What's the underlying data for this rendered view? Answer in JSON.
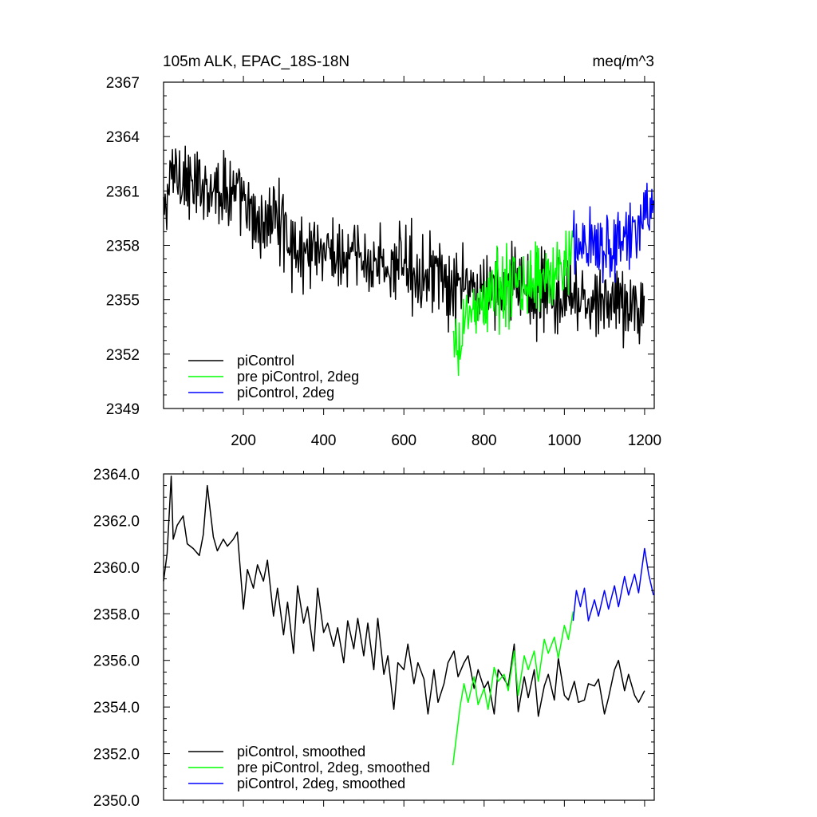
{
  "chart_data": [
    {
      "type": "line",
      "title": "105m ALK, EPAC_18S-18N",
      "units": "meq/m^3",
      "xlim": [
        1,
        1224
      ],
      "ylim": [
        2349,
        2367
      ],
      "xticks": [
        200,
        400,
        600,
        800,
        1000,
        1200
      ],
      "xtick_labels": [
        "200",
        "400",
        "600",
        "800",
        "1000",
        "1200"
      ],
      "yticks": [
        2349,
        2352,
        2355,
        2358,
        2361,
        2364,
        2367
      ],
      "ytick_labels": [
        "2349",
        "2352",
        "2355",
        "2358",
        "2361",
        "2364",
        "2367"
      ],
      "legend_position": "bottom-left",
      "series": [
        {
          "name": "piControl",
          "color": "#000000",
          "style": "noisy",
          "x": [
            1,
            25,
            50,
            75,
            100,
            125,
            150,
            175,
            200,
            225,
            250,
            275,
            300,
            325,
            350,
            375,
            400,
            425,
            450,
            475,
            500,
            525,
            550,
            575,
            600,
            625,
            650,
            675,
            700,
            725,
            750,
            775,
            800,
            825,
            850,
            875,
            900,
            925,
            950,
            975,
            1000,
            1025,
            1050,
            1075,
            1100,
            1125,
            1150,
            1175,
            1200
          ],
          "y": [
            2359.5,
            2362.3,
            2361.8,
            2361.0,
            2361.5,
            2361.3,
            2361.1,
            2361.0,
            2360.2,
            2359.3,
            2359.1,
            2359.8,
            2359.1,
            2357.8,
            2357.4,
            2358.3,
            2357.6,
            2357.6,
            2357.0,
            2357.6,
            2356.9,
            2357.2,
            2356.9,
            2356.5,
            2357.5,
            2356.6,
            2356.3,
            2356.9,
            2355.5,
            2355.2,
            2356.0,
            2355.4,
            2355.3,
            2355.7,
            2355.3,
            2356.0,
            2355.8,
            2355.2,
            2355.6,
            2354.8,
            2355.1,
            2354.9,
            2354.9,
            2354.6,
            2354.9,
            2355.2,
            2354.6,
            2354.7,
            2354.7
          ]
        },
        {
          "name": "pre piControl, 2deg",
          "color": "#00ff00",
          "style": "noisy",
          "x": [
            722,
            735,
            750,
            775,
            800,
            825,
            850,
            875,
            900,
            925,
            950,
            975,
            1000,
            1022
          ],
          "y": [
            2352.3,
            2351.8,
            2353.8,
            2354.6,
            2354.6,
            2355.7,
            2355.4,
            2355.9,
            2355.6,
            2356.2,
            2356.2,
            2356.4,
            2356.8,
            2357.6
          ]
        },
        {
          "name": "piControl, 2deg",
          "color": "#0000ff",
          "style": "noisy",
          "x": [
            1022,
            1050,
            1075,
            1100,
            1125,
            1150,
            1175,
            1200,
            1222
          ],
          "y": [
            2357.8,
            2358.4,
            2358.2,
            2358.3,
            2357.8,
            2358.6,
            2358.8,
            2359.6,
            2359.2
          ]
        }
      ]
    },
    {
      "type": "line",
      "title": "",
      "units": "",
      "xlim": [
        1,
        1224
      ],
      "ylim": [
        2350,
        2364
      ],
      "xticks": [
        200,
        400,
        600,
        800,
        1000,
        1200
      ],
      "xtick_labels": [],
      "yticks": [
        2350,
        2352,
        2354,
        2356,
        2358,
        2360,
        2362,
        2364
      ],
      "ytick_labels": [
        "2350.0",
        "2352.0",
        "2354.0",
        "2356.0",
        "2358.0",
        "2360.0",
        "2362.0",
        "2364.0"
      ],
      "legend_position": "bottom-left",
      "series": [
        {
          "name": "piControl, smoothed",
          "color": "#000000",
          "style": "smooth",
          "x": [
            1,
            10,
            20,
            25,
            35,
            50,
            60,
            75,
            90,
            100,
            110,
            125,
            135,
            150,
            160,
            175,
            185,
            200,
            210,
            225,
            235,
            250,
            260,
            275,
            285,
            300,
            310,
            325,
            335,
            350,
            360,
            375,
            385,
            400,
            410,
            425,
            435,
            450,
            460,
            475,
            485,
            500,
            510,
            525,
            535,
            550,
            560,
            575,
            585,
            600,
            610,
            625,
            635,
            650,
            660,
            675,
            685,
            700,
            710,
            725,
            735,
            750,
            760,
            775,
            785,
            800,
            810,
            825,
            835,
            850,
            860,
            875,
            885,
            900,
            910,
            925,
            935,
            950,
            960,
            975,
            985,
            1000,
            1010,
            1025,
            1035,
            1050,
            1060,
            1075,
            1085,
            1100,
            1110,
            1125,
            1135,
            1150,
            1160,
            1175,
            1185,
            1200
          ],
          "y": [
            2359.4,
            2360.6,
            2363.9,
            2361.2,
            2361.8,
            2362.2,
            2361.0,
            2360.8,
            2360.5,
            2361.4,
            2363.5,
            2361.3,
            2360.7,
            2361.2,
            2360.9,
            2361.2,
            2361.5,
            2358.2,
            2359.9,
            2359.1,
            2360.1,
            2359.4,
            2360.3,
            2357.9,
            2359.1,
            2357.1,
            2358.5,
            2356.3,
            2359.2,
            2357.6,
            2358.3,
            2356.4,
            2359.1,
            2357.2,
            2357.6,
            2356.6,
            2357.4,
            2355.9,
            2357.7,
            2356.5,
            2357.8,
            2356.2,
            2357.6,
            2355.6,
            2357.8,
            2355.4,
            2356.2,
            2353.9,
            2355.9,
            2355.6,
            2356.7,
            2355.0,
            2355.9,
            2355.2,
            2353.7,
            2355.6,
            2354.2,
            2355.0,
            2355.9,
            2356.4,
            2355.3,
            2355.9,
            2356.2,
            2354.8,
            2355.6,
            2354.8,
            2355.1,
            2353.7,
            2355.6,
            2355.2,
            2354.9,
            2356.7,
            2353.8,
            2355.3,
            2354.4,
            2355.6,
            2353.6,
            2354.9,
            2355.4,
            2354.3,
            2356.1,
            2354.5,
            2354.3,
            2355.1,
            2354.2,
            2354.3,
            2355.0,
            2354.9,
            2355.2,
            2353.7,
            2354.4,
            2355.6,
            2356.0,
            2354.7,
            2355.4,
            2354.5,
            2354.2,
            2354.7
          ]
        },
        {
          "name": "pre piControl, 2deg, smoothed",
          "color": "#00ff00",
          "style": "smooth",
          "x": [
            722,
            730,
            740,
            750,
            760,
            775,
            785,
            800,
            810,
            825,
            835,
            850,
            860,
            875,
            885,
            900,
            910,
            925,
            935,
            950,
            960,
            975,
            985,
            1000,
            1010,
            1022
          ],
          "y": [
            2351.5,
            2352.6,
            2354.0,
            2355.0,
            2354.2,
            2355.3,
            2354.1,
            2354.8,
            2353.9,
            2355.7,
            2355.1,
            2355.4,
            2354.7,
            2356.4,
            2354.5,
            2356.2,
            2355.6,
            2356.4,
            2355.1,
            2356.9,
            2356.3,
            2357.0,
            2356.1,
            2357.5,
            2356.9,
            2358.1
          ]
        },
        {
          "name": "piControl, 2deg, smoothed",
          "color": "#0000ff",
          "style": "smooth",
          "x": [
            1022,
            1030,
            1040,
            1050,
            1060,
            1075,
            1085,
            1100,
            1110,
            1125,
            1135,
            1150,
            1160,
            1175,
            1185,
            1200,
            1210,
            1222
          ],
          "y": [
            2357.7,
            2359.0,
            2358.3,
            2359.1,
            2357.7,
            2358.6,
            2357.9,
            2359.0,
            2358.2,
            2359.2,
            2358.3,
            2359.6,
            2358.8,
            2359.7,
            2358.9,
            2360.8,
            2359.7,
            2358.8
          ]
        }
      ]
    }
  ]
}
